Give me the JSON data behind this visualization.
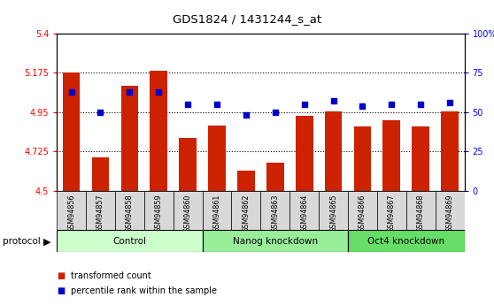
{
  "title": "GDS1824 / 1431244_s_at",
  "samples": [
    "GSM94856",
    "GSM94857",
    "GSM94858",
    "GSM94859",
    "GSM94860",
    "GSM94861",
    "GSM94862",
    "GSM94863",
    "GSM94864",
    "GSM94865",
    "GSM94866",
    "GSM94867",
    "GSM94868",
    "GSM94869"
  ],
  "bar_values": [
    5.175,
    4.69,
    5.1,
    5.185,
    4.8,
    4.875,
    4.615,
    4.66,
    4.93,
    4.955,
    4.87,
    4.905,
    4.87,
    4.955
  ],
  "dot_values": [
    63,
    50,
    63,
    63,
    55,
    55,
    48,
    50,
    55,
    57,
    54,
    55,
    55,
    56
  ],
  "ylim_left": [
    4.5,
    5.4
  ],
  "ylim_right": [
    0,
    100
  ],
  "yticks_left": [
    4.5,
    4.725,
    4.95,
    5.175,
    5.4
  ],
  "ytick_labels_left": [
    "4.5",
    "4.725",
    "4.95",
    "5.175",
    "5.4"
  ],
  "yticks_right": [
    0,
    25,
    50,
    75,
    100
  ],
  "ytick_labels_right": [
    "0",
    "25",
    "50",
    "75",
    "100%"
  ],
  "hlines": [
    4.725,
    4.95,
    5.175
  ],
  "bar_color": "#cc2200",
  "dot_color": "#0000cc",
  "groups": [
    {
      "label": "Control",
      "start": 0,
      "end": 5,
      "color": "#ccffcc"
    },
    {
      "label": "Nanog knockdown",
      "start": 5,
      "end": 10,
      "color": "#99ee99"
    },
    {
      "label": "Oct4 knockdown",
      "start": 10,
      "end": 14,
      "color": "#66dd66"
    }
  ],
  "protocol_label": "protocol",
  "legend_items": [
    {
      "label": "transformed count",
      "color": "#cc2200"
    },
    {
      "label": "percentile rank within the sample",
      "color": "#0000cc"
    }
  ],
  "xcell_color": "#d8d8d8",
  "plot_bg": "#ffffff"
}
